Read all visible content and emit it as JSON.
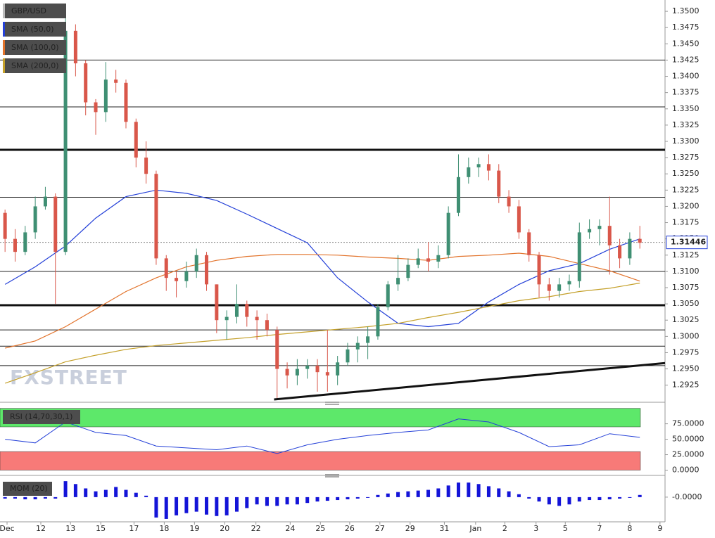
{
  "chart_data": [
    {
      "type": "candlestick",
      "title": "GBP/USD",
      "xlim": [
        -0.5,
        65.5
      ],
      "xticks": [
        {
          "value": 0.2,
          "label": "Dec"
        },
        {
          "value": 3.55,
          "label": "12"
        },
        {
          "value": 6.5,
          "label": "13"
        },
        {
          "value": 9.5,
          "label": "15"
        },
        {
          "value": 12.8,
          "label": "17"
        },
        {
          "value": 15.8,
          "label": "18"
        },
        {
          "value": 18.8,
          "label": "19"
        },
        {
          "value": 21.8,
          "label": "20"
        },
        {
          "value": 24.9,
          "label": "22"
        },
        {
          "value": 28.3,
          "label": "24"
        },
        {
          "value": 31.3,
          "label": "25"
        },
        {
          "value": 34.2,
          "label": "26"
        },
        {
          "value": 37.2,
          "label": "27"
        },
        {
          "value": 40.2,
          "label": "29"
        },
        {
          "value": 43.6,
          "label": "31"
        },
        {
          "value": 46.7,
          "label": "Jan"
        },
        {
          "value": 49.6,
          "label": "2"
        },
        {
          "value": 52.7,
          "label": "3"
        },
        {
          "value": 55.6,
          "label": "5"
        },
        {
          "value": 59.0,
          "label": "7"
        },
        {
          "value": 62.0,
          "label": "8"
        },
        {
          "value": 65.0,
          "label": "9"
        }
      ],
      "ylim": [
        1.2903,
        1.3512
      ],
      "yticks": [
        {
          "value": 1.2925,
          "label": "1.2925"
        },
        {
          "value": 1.295,
          "label": "1.2950"
        },
        {
          "value": 1.2975,
          "label": "1.2975"
        },
        {
          "value": 1.3,
          "label": "1.3000"
        },
        {
          "value": 1.3025,
          "label": "1.3025"
        },
        {
          "value": 1.305,
          "label": "1.3050"
        },
        {
          "value": 1.3075,
          "label": "1.3075"
        },
        {
          "value": 1.31,
          "label": "1.3100"
        },
        {
          "value": 1.3125,
          "label": "1.3125"
        },
        {
          "value": 1.315,
          "label": "1.3150"
        },
        {
          "value": 1.3175,
          "label": "1.3175"
        },
        {
          "value": 1.32,
          "label": "1.3200"
        },
        {
          "value": 1.3225,
          "label": "1.3225"
        },
        {
          "value": 1.325,
          "label": "1.3250"
        },
        {
          "value": 1.3275,
          "label": "1.3275"
        },
        {
          "value": 1.33,
          "label": "1.3300"
        },
        {
          "value": 1.3325,
          "label": "1.3325"
        },
        {
          "value": 1.335,
          "label": "1.3350"
        },
        {
          "value": 1.3375,
          "label": "1.3375"
        },
        {
          "value": 1.34,
          "label": "1.3400"
        },
        {
          "value": 1.3425,
          "label": "1.3425"
        },
        {
          "value": 1.345,
          "label": "1.3450"
        },
        {
          "value": 1.3475,
          "label": "1.3475"
        },
        {
          "value": 1.35,
          "label": "1.3500"
        }
      ],
      "up_color": "#3f8f73",
      "down_color": "#d9574a",
      "candles": {
        "open": [
          1.319,
          1.315,
          1.313,
          1.316,
          1.32,
          1.3215,
          1.313,
          1.347,
          1.342,
          1.336,
          1.3345,
          1.3395,
          1.339,
          1.333,
          1.3275,
          1.325,
          1.312,
          1.309,
          1.3085,
          1.31,
          1.3125,
          1.308,
          1.3025,
          1.303,
          1.305,
          1.303,
          1.3025,
          1.301,
          1.295,
          1.294,
          1.295,
          1.2955,
          1.2945,
          1.294,
          1.296,
          1.298,
          1.299,
          1.3,
          1.3045,
          1.308,
          1.309,
          1.311,
          1.312,
          1.3115,
          1.3125,
          1.319,
          1.3245,
          1.326,
          1.3265,
          1.3255,
          1.3215,
          1.32,
          1.316,
          1.3125,
          1.308,
          1.307,
          1.308,
          1.3085,
          1.316,
          1.3165,
          1.317,
          1.314,
          1.312,
          1.315
        ],
        "high": [
          1.3195,
          1.3165,
          1.317,
          1.3215,
          1.323,
          1.322,
          1.3505,
          1.348,
          1.3425,
          1.3365,
          1.3422,
          1.341,
          1.3395,
          1.3335,
          1.33,
          1.3255,
          1.3125,
          1.31,
          1.3115,
          1.3135,
          1.313,
          1.308,
          1.304,
          1.308,
          1.3055,
          1.304,
          1.3035,
          1.3015,
          1.296,
          1.2965,
          1.2965,
          1.2965,
          1.301,
          1.297,
          1.299,
          1.3,
          1.3015,
          1.305,
          1.3085,
          1.3125,
          1.312,
          1.3135,
          1.3145,
          1.314,
          1.32,
          1.328,
          1.3275,
          1.3275,
          1.328,
          1.3265,
          1.3225,
          1.321,
          1.3165,
          1.313,
          1.309,
          1.309,
          1.3095,
          1.3175,
          1.318,
          1.318,
          1.3215,
          1.315,
          1.316,
          1.317
        ],
        "low": [
          1.313,
          1.3115,
          1.3125,
          1.315,
          1.3195,
          1.305,
          1.3125,
          1.34,
          1.334,
          1.331,
          1.333,
          1.3375,
          1.332,
          1.326,
          1.3235,
          1.311,
          1.307,
          1.306,
          1.3075,
          1.309,
          1.307,
          1.3005,
          1.2995,
          1.302,
          1.3015,
          1.2995,
          1.3,
          1.2905,
          1.292,
          1.2925,
          1.2935,
          1.2915,
          1.2915,
          1.2925,
          1.2955,
          1.296,
          1.2965,
          1.2995,
          1.304,
          1.307,
          1.3085,
          1.3105,
          1.31,
          1.3105,
          1.312,
          1.3185,
          1.3235,
          1.3245,
          1.324,
          1.3205,
          1.319,
          1.315,
          1.3115,
          1.306,
          1.3055,
          1.306,
          1.307,
          1.3075,
          1.315,
          1.314,
          1.3095,
          1.3105,
          1.311,
          1.3135
        ],
        "close": [
          1.315,
          1.313,
          1.316,
          1.32,
          1.3215,
          1.313,
          1.347,
          1.342,
          1.336,
          1.3345,
          1.3395,
          1.339,
          1.333,
          1.3275,
          1.325,
          1.312,
          1.309,
          1.3085,
          1.31,
          1.3125,
          1.308,
          1.3025,
          1.303,
          1.305,
          1.303,
          1.3025,
          1.301,
          1.295,
          1.294,
          1.295,
          1.2955,
          1.2945,
          1.294,
          1.296,
          1.298,
          1.299,
          1.3,
          1.3045,
          1.308,
          1.309,
          1.311,
          1.312,
          1.3115,
          1.3125,
          1.319,
          1.3245,
          1.326,
          1.3265,
          1.3255,
          1.3215,
          1.32,
          1.316,
          1.3125,
          1.308,
          1.307,
          1.308,
          1.3085,
          1.316,
          1.3165,
          1.317,
          1.314,
          1.312,
          1.315,
          1.3144
        ]
      },
      "series": [
        {
          "name": "SMA (50,0)",
          "color": "#2440d8",
          "x": [
            0,
            3,
            6,
            9,
            12,
            15,
            18,
            21,
            24,
            27,
            30,
            33,
            36,
            39,
            42,
            45,
            48,
            51,
            54,
            57,
            60,
            63
          ],
          "values": [
            1.308,
            1.3107,
            1.3139,
            1.3182,
            1.3215,
            1.3225,
            1.322,
            1.3209,
            1.3188,
            1.3166,
            1.3144,
            1.309,
            1.3053,
            1.302,
            1.3015,
            1.302,
            1.3053,
            1.308,
            1.3101,
            1.3112,
            1.3134,
            1.315
          ]
        },
        {
          "name": "SMA (100,0)",
          "color": "#e2722a",
          "x": [
            0,
            3,
            6,
            9,
            12,
            15,
            18,
            21,
            24,
            27,
            30,
            33,
            36,
            39,
            42,
            45,
            48,
            51,
            54,
            57,
            60,
            63
          ],
          "values": [
            1.2982,
            1.2993,
            1.3015,
            1.3042,
            1.3069,
            1.309,
            1.3107,
            1.3117,
            1.3123,
            1.3126,
            1.3126,
            1.3125,
            1.3122,
            1.312,
            1.3117,
            1.3123,
            1.3125,
            1.3128,
            1.3123,
            1.3112,
            1.3101,
            1.3085
          ]
        },
        {
          "name": "SMA (200,0)",
          "color": "#c4a02a",
          "x": [
            0,
            3,
            6,
            9,
            12,
            15,
            18,
            21,
            24,
            27,
            30,
            33,
            36,
            39,
            42,
            45,
            48,
            51,
            54,
            57,
            60,
            63
          ],
          "values": [
            1.2928,
            1.2944,
            1.2961,
            1.2971,
            1.298,
            1.2986,
            1.299,
            1.2994,
            1.2998,
            1.3003,
            1.3007,
            1.3011,
            1.3015,
            1.302,
            1.3029,
            1.3037,
            1.3046,
            1.3055,
            1.3061,
            1.3069,
            1.3074,
            1.3082
          ]
        }
      ],
      "key_levels": [
        1.3287,
        1.3048
      ],
      "levels": [
        1.3425,
        1.3353,
        1.3214,
        1.31,
        1.301,
        1.2985,
        1.2955
      ],
      "trendline": {
        "x": [
          26.7,
          65.5
        ],
        "values": [
          1.2903,
          1.2959
        ]
      },
      "last_price": 1.31446,
      "watermark": "FXSTREET"
    },
    {
      "type": "line",
      "title": "RSI (14,70,30,1)",
      "ylim": [
        -4,
        103
      ],
      "yticks": [
        {
          "value": 75,
          "label": "75.0000"
        },
        {
          "value": 50,
          "label": "50.0000"
        },
        {
          "value": 25,
          "label": "25.0000"
        },
        {
          "value": 0,
          "label": "0.0000"
        }
      ],
      "zones": [
        {
          "from": 70,
          "to": 100,
          "color": "#5de86a"
        },
        {
          "from": 0,
          "to": 30,
          "color": "#f77a78"
        }
      ],
      "series": [
        {
          "color": "#2440d8",
          "x": [
            0,
            3,
            6,
            9,
            12,
            15,
            18,
            21,
            24,
            27,
            30,
            33,
            36,
            39,
            42,
            45,
            48,
            51,
            54,
            57,
            60,
            63
          ],
          "values": [
            50,
            44,
            78,
            61,
            56,
            39,
            36,
            33,
            39,
            27,
            41,
            50,
            56,
            61,
            65,
            83,
            78,
            61,
            38,
            41,
            59,
            53
          ]
        }
      ]
    },
    {
      "type": "bar",
      "title": "MOM (20)",
      "color": "#1414d8",
      "ylim": [
        -0.032,
        0.026
      ],
      "yticks": [
        {
          "value": 0,
          "label": "-0.0000"
        }
      ],
      "values": [
        -0.002,
        -0.002,
        -0.003,
        -0.003,
        -0.002,
        -0.002,
        0.022,
        0.018,
        0.012,
        0.008,
        0.01,
        0.014,
        0.01,
        0.006,
        0.002,
        -0.028,
        -0.03,
        -0.025,
        -0.022,
        -0.02,
        -0.024,
        -0.026,
        -0.025,
        -0.02,
        -0.015,
        -0.01,
        -0.012,
        -0.012,
        -0.01,
        -0.01,
        -0.008,
        -0.006,
        -0.005,
        -0.004,
        -0.003,
        -0.002,
        -0.001,
        0.003,
        0.005,
        0.007,
        0.008,
        0.009,
        0.01,
        0.012,
        0.016,
        0.02,
        0.02,
        0.018,
        0.015,
        0.012,
        0.008,
        0.004,
        -0.002,
        -0.006,
        -0.01,
        -0.012,
        -0.01,
        -0.006,
        -0.004,
        -0.004,
        -0.003,
        -0.002,
        -0.001,
        0.003
      ]
    }
  ]
}
